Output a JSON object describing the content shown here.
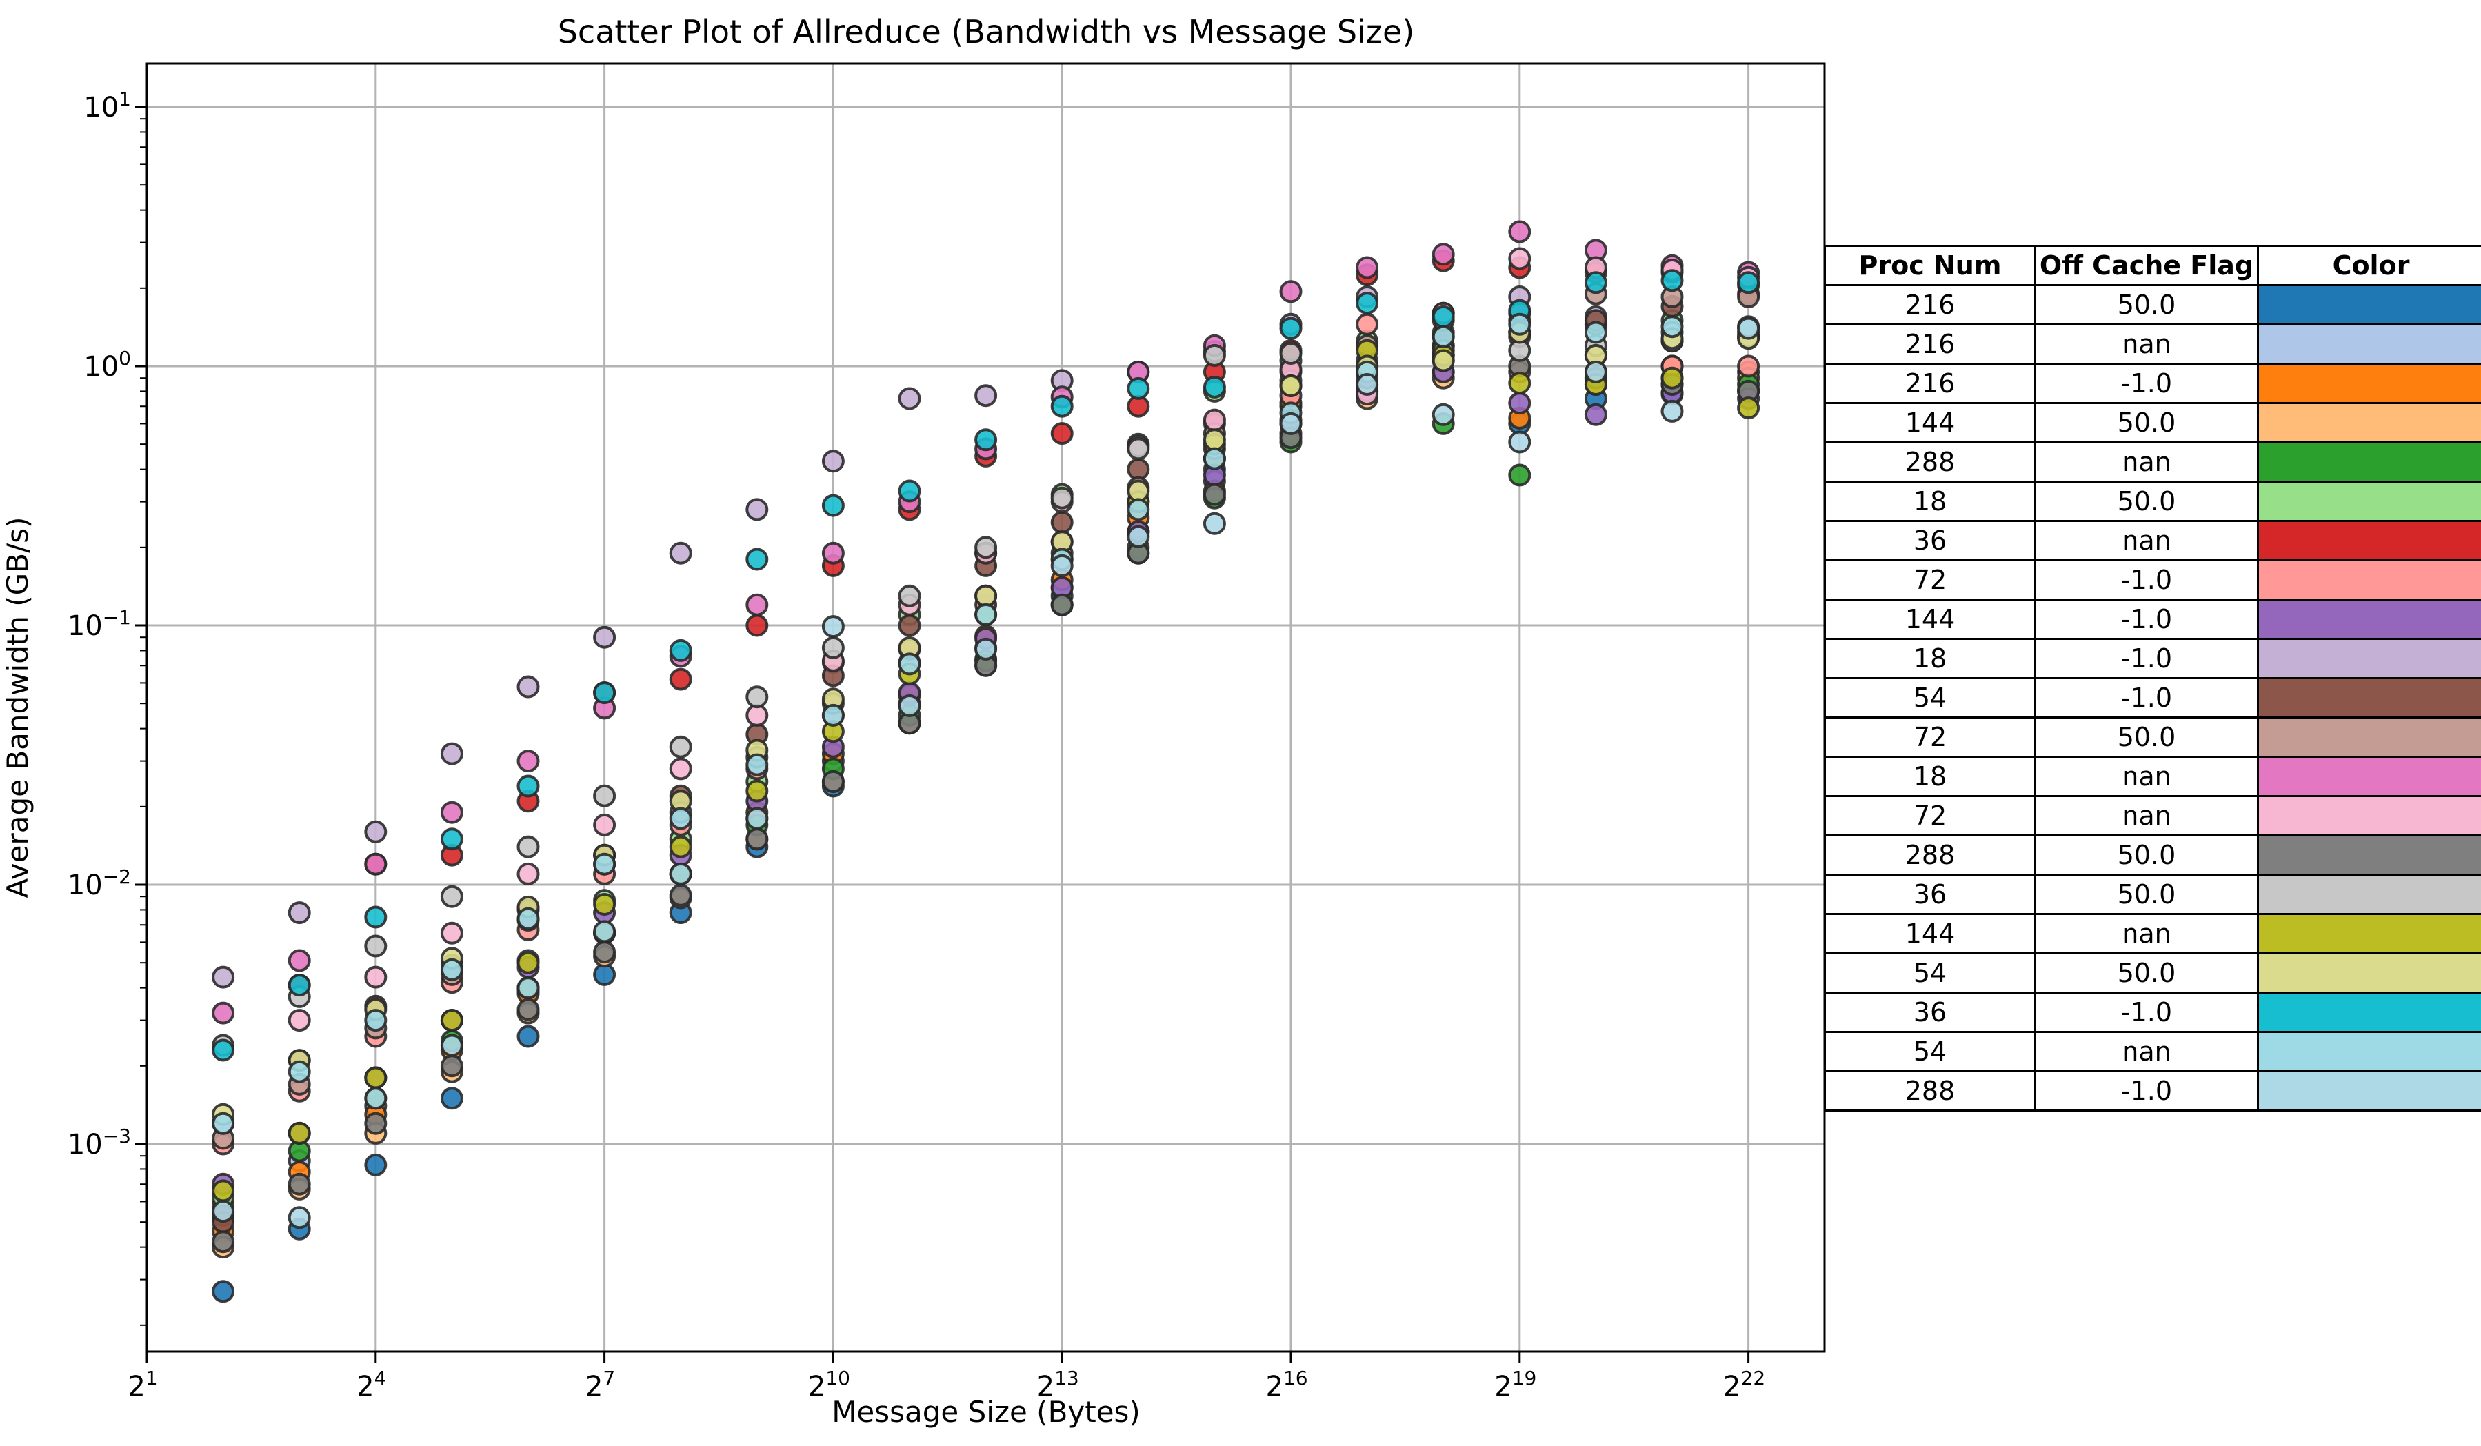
{
  "title": "Scatter Plot of Allreduce (Bandwidth vs Message Size)",
  "axes": {
    "x_label": "Message Size (Bytes)",
    "y_label": "Average Bandwidth (GB/s)",
    "x_tick_base": "2",
    "x_tick_exponents": [
      1,
      4,
      7,
      10,
      13,
      16,
      19,
      22
    ],
    "y_tick_base": "10",
    "y_tick_exponents": [
      1,
      0,
      -1,
      -2,
      -3
    ]
  },
  "legend": {
    "headers": [
      "Proc Num",
      "Off Cache Flag",
      "Color"
    ],
    "rows": [
      {
        "proc": "216",
        "flag": "50.0",
        "color": "#1f77b4"
      },
      {
        "proc": "216",
        "flag": "nan",
        "color": "#aec7e8"
      },
      {
        "proc": "216",
        "flag": "-1.0",
        "color": "#ff7f0e"
      },
      {
        "proc": "144",
        "flag": "50.0",
        "color": "#ffbb78"
      },
      {
        "proc": "288",
        "flag": "nan",
        "color": "#2ca02c"
      },
      {
        "proc": "18",
        "flag": "50.0",
        "color": "#98df8a"
      },
      {
        "proc": "36",
        "flag": "nan",
        "color": "#d62728"
      },
      {
        "proc": "72",
        "flag": "-1.0",
        "color": "#ff9896"
      },
      {
        "proc": "144",
        "flag": "-1.0",
        "color": "#9467bd"
      },
      {
        "proc": "18",
        "flag": "-1.0",
        "color": "#c5b0d5"
      },
      {
        "proc": "54",
        "flag": "-1.0",
        "color": "#8c564b"
      },
      {
        "proc": "72",
        "flag": "50.0",
        "color": "#c49c94"
      },
      {
        "proc": "18",
        "flag": "nan",
        "color": "#e377c2"
      },
      {
        "proc": "72",
        "flag": "nan",
        "color": "#f7b6d2"
      },
      {
        "proc": "288",
        "flag": "50.0",
        "color": "#7f7f7f"
      },
      {
        "proc": "36",
        "flag": "50.0",
        "color": "#c7c7c7"
      },
      {
        "proc": "144",
        "flag": "nan",
        "color": "#bcbd22"
      },
      {
        "proc": "54",
        "flag": "50.0",
        "color": "#dbdb8d"
      },
      {
        "proc": "36",
        "flag": "-1.0",
        "color": "#17becf"
      },
      {
        "proc": "54",
        "flag": "nan",
        "color": "#9edae5"
      },
      {
        "proc": "288",
        "flag": "-1.0",
        "color": "#add8e6"
      }
    ]
  },
  "chart_data": {
    "type": "scatter",
    "x_base": 2,
    "x_exponents": [
      2,
      3,
      4,
      5,
      6,
      7,
      8,
      9,
      10,
      11,
      12,
      13,
      14,
      15,
      16,
      17,
      18,
      19,
      20,
      21,
      22
    ],
    "xlim_exponents": [
      1,
      23
    ],
    "ylim": [
      0.00016,
      14.7
    ],
    "y_scale": "log10",
    "grid": true,
    "legend_position": "right-table",
    "series": [
      {
        "name": "216 / 50.0",
        "proc": 216,
        "flag": "50.0",
        "color": "#1f77b4",
        "values": [
          0.00027,
          0.00047,
          0.00083,
          0.0015,
          0.0026,
          0.0045,
          0.0078,
          0.014,
          0.024,
          0.042,
          0.074,
          0.13,
          0.23,
          0.4,
          0.7,
          0.8,
          0.95,
          0.6,
          0.75,
          0.78,
          0.8
        ]
      },
      {
        "name": "216 / nan",
        "proc": 216,
        "flag": "nan",
        "color": "#aec7e8",
        "values": [
          0.00052,
          0.00086,
          0.0014,
          0.0024,
          0.0039,
          0.0065,
          0.011,
          0.018,
          0.03,
          0.05,
          0.082,
          0.14,
          0.23,
          0.36,
          0.6,
          1.0,
          1.2,
          1.35,
          1.45,
          1.25,
          0.81
        ]
      },
      {
        "name": "216 / -1.0",
        "proc": 216,
        "flag": "-1.0",
        "color": "#ff7f0e",
        "values": [
          0.00046,
          0.00078,
          0.0013,
          0.0023,
          0.0038,
          0.0065,
          0.011,
          0.019,
          0.032,
          0.054,
          0.091,
          0.15,
          0.26,
          0.44,
          0.72,
          0.95,
          1.1,
          0.63,
          0.95,
          1.0,
          0.95
        ]
      },
      {
        "name": "144 / 50.0",
        "proc": 144,
        "flag": "50.0",
        "color": "#ffbb78",
        "values": [
          0.0004,
          0.00067,
          0.0011,
          0.0019,
          0.0032,
          0.0053,
          0.0089,
          0.015,
          0.025,
          0.042,
          0.07,
          0.12,
          0.2,
          0.33,
          0.55,
          0.75,
          0.9,
          0.95,
          0.85,
          0.9,
          0.9
        ]
      },
      {
        "name": "288 / nan",
        "proc": 288,
        "flag": "nan",
        "color": "#2ca02c",
        "values": [
          0.00058,
          0.00094,
          0.0015,
          0.0025,
          0.004,
          0.0065,
          0.011,
          0.017,
          0.028,
          0.045,
          0.073,
          0.12,
          0.19,
          0.31,
          0.51,
          0.85,
          0.6,
          0.38,
          0.9,
          0.85,
          0.85
        ]
      },
      {
        "name": "18 / 50.0",
        "proc": 18,
        "flag": "50.0",
        "color": "#98df8a",
        "values": [
          0.00062,
          0.0011,
          0.0018,
          0.003,
          0.0051,
          0.0087,
          0.015,
          0.025,
          0.072,
          0.11,
          0.19,
          0.32,
          0.5,
          0.8,
          1.05,
          1.25,
          1.35,
          1.5,
          1.45,
          1.5,
          1.35
        ]
      },
      {
        "name": "36 / nan",
        "proc": 36,
        "flag": "nan",
        "color": "#d62728",
        "values": [
          0.00053,
          0.0041,
          0.012,
          0.013,
          0.021,
          0.055,
          0.062,
          0.1,
          0.17,
          0.28,
          0.45,
          0.55,
          0.7,
          0.95,
          1.15,
          2.25,
          2.55,
          2.4,
          2.3,
          2.3,
          2.05
        ]
      },
      {
        "name": "72 / -1.0",
        "proc": 72,
        "flag": "-1.0",
        "color": "#ff9896",
        "values": [
          0.001,
          0.0016,
          0.0026,
          0.0042,
          0.0067,
          0.011,
          0.017,
          0.028,
          0.045,
          0.072,
          0.12,
          0.19,
          0.3,
          0.48,
          0.77,
          1.45,
          1.2,
          1.3,
          1.1,
          1.0,
          1.0
        ]
      },
      {
        "name": "144 / -1.0",
        "proc": 144,
        "flag": "-1.0",
        "color": "#9467bd",
        "values": [
          0.0007,
          0.0011,
          0.0018,
          0.003,
          0.0048,
          0.0078,
          0.013,
          0.021,
          0.034,
          0.055,
          0.089,
          0.14,
          0.23,
          0.38,
          0.62,
          0.8,
          0.95,
          0.72,
          0.65,
          0.79,
          0.75
        ]
      },
      {
        "name": "18 / -1.0",
        "proc": 18,
        "flag": "-1.0",
        "color": "#c5b0d5",
        "values": [
          0.0044,
          0.0078,
          0.016,
          0.032,
          0.058,
          0.09,
          0.19,
          0.28,
          0.43,
          0.75,
          0.77,
          0.88,
          0.95,
          1.14,
          1.45,
          1.85,
          1.6,
          1.85,
          1.55,
          1.35,
          1.3
        ]
      },
      {
        "name": "54 / -1.0",
        "proc": 54,
        "flag": "-1.0",
        "color": "#8c564b",
        "values": [
          0.0005,
          0.0021,
          0.0034,
          0.0049,
          0.008,
          0.013,
          0.022,
          0.038,
          0.064,
          0.1,
          0.17,
          0.25,
          0.4,
          0.6,
          0.95,
          1.05,
          1.3,
          1.35,
          1.5,
          1.7,
          1.9
        ]
      },
      {
        "name": "72 / 50.0",
        "proc": 72,
        "flag": "50.0",
        "color": "#c49c94",
        "values": [
          0.00105,
          0.0017,
          0.0028,
          0.0045,
          0.0073,
          0.012,
          0.019,
          0.031,
          0.05,
          0.081,
          0.13,
          0.21,
          0.34,
          0.55,
          0.88,
          1.2,
          1.5,
          1.6,
          1.9,
          1.85,
          1.85
        ]
      },
      {
        "name": "18 / nan",
        "proc": 18,
        "flag": "nan",
        "color": "#e377c2",
        "values": [
          0.0032,
          0.0051,
          0.012,
          0.019,
          0.03,
          0.048,
          0.076,
          0.12,
          0.19,
          0.3,
          0.48,
          0.76,
          0.95,
          1.2,
          1.94,
          2.4,
          2.7,
          3.3,
          2.8,
          2.44,
          2.3
        ]
      },
      {
        "name": "72 / nan",
        "proc": 72,
        "flag": "nan",
        "color": "#f7b6d2",
        "values": [
          0.0012,
          0.003,
          0.0044,
          0.0065,
          0.011,
          0.017,
          0.028,
          0.045,
          0.073,
          0.12,
          0.19,
          0.3,
          0.49,
          0.62,
          0.97,
          0.78,
          1.6,
          2.6,
          2.4,
          2.35,
          2.2
        ]
      },
      {
        "name": "288 / 50.0",
        "proc": 288,
        "flag": "50.0",
        "color": "#7f7f7f",
        "values": [
          0.00042,
          0.0007,
          0.0012,
          0.002,
          0.0033,
          0.0055,
          0.0091,
          0.015,
          0.025,
          0.042,
          0.07,
          0.12,
          0.19,
          0.32,
          0.53,
          0.9,
          1.05,
          1.0,
          0.9,
          0.85,
          0.8
        ]
      },
      {
        "name": "36 / 50.0",
        "proc": 36,
        "flag": "50.0",
        "color": "#c7c7c7",
        "values": [
          0.0024,
          0.0037,
          0.0058,
          0.009,
          0.014,
          0.022,
          0.034,
          0.053,
          0.082,
          0.13,
          0.2,
          0.31,
          0.48,
          1.1,
          1.12,
          1.0,
          1.15,
          1.15,
          1.2,
          1.25,
          1.3
        ]
      },
      {
        "name": "144 / nan",
        "proc": 144,
        "flag": "nan",
        "color": "#bcbd22",
        "values": [
          0.00066,
          0.0011,
          0.0018,
          0.003,
          0.005,
          0.0084,
          0.014,
          0.023,
          0.039,
          0.065,
          0.11,
          0.18,
          0.3,
          0.5,
          0.84,
          1.15,
          1.1,
          0.86,
          0.85,
          0.9,
          0.69
        ]
      },
      {
        "name": "54 / 50.0",
        "proc": 54,
        "flag": "50.0",
        "color": "#dbdb8d",
        "values": [
          0.0013,
          0.0021,
          0.0033,
          0.0052,
          0.0082,
          0.013,
          0.021,
          0.033,
          0.052,
          0.082,
          0.13,
          0.21,
          0.33,
          0.52,
          0.84,
          1.0,
          1.05,
          1.35,
          1.1,
          1.28,
          1.28
        ]
      },
      {
        "name": "36 / -1.0",
        "proc": 36,
        "flag": "-1.0",
        "color": "#17becf",
        "values": [
          0.0023,
          0.0041,
          0.0075,
          0.015,
          0.024,
          0.055,
          0.08,
          0.18,
          0.29,
          0.33,
          0.52,
          0.7,
          0.82,
          0.83,
          1.4,
          1.75,
          1.55,
          1.64,
          2.1,
          2.14,
          2.1
        ]
      },
      {
        "name": "54 / nan",
        "proc": 54,
        "flag": "nan",
        "color": "#9edae5",
        "values": [
          0.0012,
          0.0019,
          0.003,
          0.0047,
          0.0074,
          0.012,
          0.018,
          0.029,
          0.045,
          0.071,
          0.11,
          0.18,
          0.28,
          0.44,
          0.66,
          0.95,
          1.3,
          1.45,
          1.35,
          1.42,
          1.42
        ]
      },
      {
        "name": "288 / -1.0",
        "proc": 288,
        "flag": "-1.0",
        "color": "#add8e6",
        "values": [
          0.00055,
          0.00052,
          0.0015,
          0.0024,
          0.004,
          0.0066,
          0.011,
          0.018,
          0.099,
          0.049,
          0.081,
          0.17,
          0.22,
          0.247,
          0.6,
          0.85,
          0.65,
          0.51,
          0.95,
          0.67,
          1.4
        ]
      }
    ]
  },
  "style": {
    "grid_color": "#b3b3b3",
    "spine_color": "#000000",
    "marker_edge_color": "#2a2a2a",
    "background": "#ffffff"
  }
}
